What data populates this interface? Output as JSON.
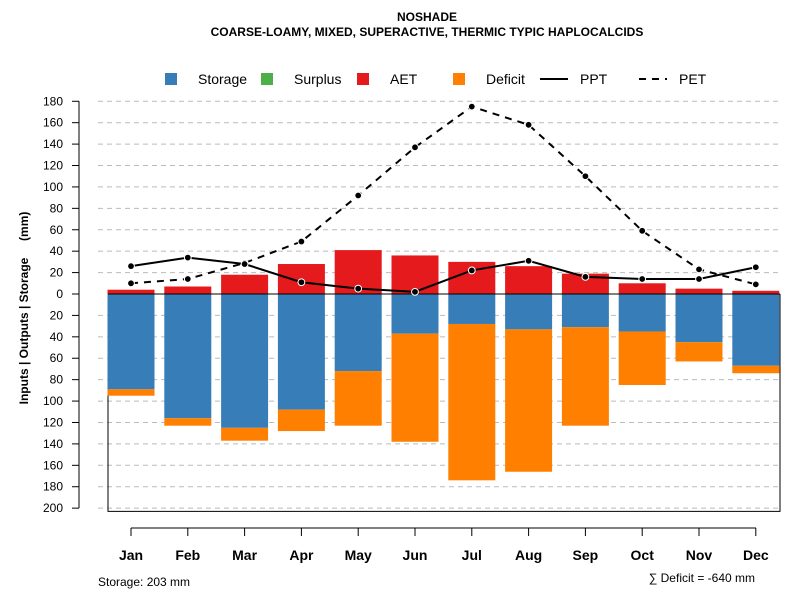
{
  "chart_data": {
    "type": "bar",
    "title": "NOSHADE",
    "subtitle": "COARSE-LOAMY, MIXED, SUPERACTIVE, THERMIC TYPIC HAPLOCALCIDS",
    "ylabel": "Inputs | Outputs | Storage     (mm)",
    "ylim": [
      -203,
      180
    ],
    "yticks": [
      180,
      160,
      140,
      120,
      100,
      80,
      60,
      40,
      20,
      0,
      -20,
      -40,
      -60,
      -80,
      -100,
      -120,
      -140,
      -160,
      -180,
      -200
    ],
    "categories": [
      "Jan",
      "Feb",
      "Mar",
      "Apr",
      "May",
      "Jun",
      "Jul",
      "Aug",
      "Sep",
      "Oct",
      "Nov",
      "Dec"
    ],
    "legend": [
      {
        "label": "Storage",
        "kind": "box",
        "color": "#377eb8"
      },
      {
        "label": "Surplus",
        "kind": "box",
        "color": "#4daf4a"
      },
      {
        "label": "AET",
        "kind": "box",
        "color": "#e41a1c"
      },
      {
        "label": "Deficit",
        "kind": "box",
        "color": "#ff7f00"
      },
      {
        "label": "PPT",
        "kind": "solid",
        "color": "#000000"
      },
      {
        "label": "PET",
        "kind": "dashed",
        "color": "#000000"
      }
    ],
    "series": [
      {
        "name": "AET",
        "color": "#e41a1c",
        "values": [
          4,
          7,
          18,
          28,
          41,
          36,
          30,
          26,
          19,
          10,
          5,
          3
        ]
      },
      {
        "name": "Storage",
        "color": "#377eb8",
        "values": [
          89,
          116,
          125,
          108,
          72,
          37,
          28,
          33,
          31,
          35,
          45,
          67
        ]
      },
      {
        "name": "Deficit",
        "color": "#ff7f00",
        "values": [
          6,
          7,
          12,
          20,
          51,
          101,
          146,
          133,
          92,
          50,
          18,
          7
        ]
      },
      {
        "name": "Surplus",
        "color": "#4daf4a",
        "values": [
          0,
          0,
          0,
          0,
          0,
          0,
          0,
          0,
          0,
          0,
          0,
          0
        ]
      },
      {
        "name": "PPT",
        "color": "#000000",
        "values": [
          26,
          34,
          28,
          11,
          5,
          2,
          22,
          31,
          16,
          14,
          14,
          25
        ]
      },
      {
        "name": "PET",
        "color": "#000000",
        "values": [
          10,
          14,
          29,
          49,
          92,
          137,
          175,
          158,
          110,
          59,
          23,
          9
        ]
      }
    ],
    "storage_capacity": 203,
    "footer_left": "Storage: 203 mm",
    "footer_right": "∑ Deficit = -640 mm"
  }
}
